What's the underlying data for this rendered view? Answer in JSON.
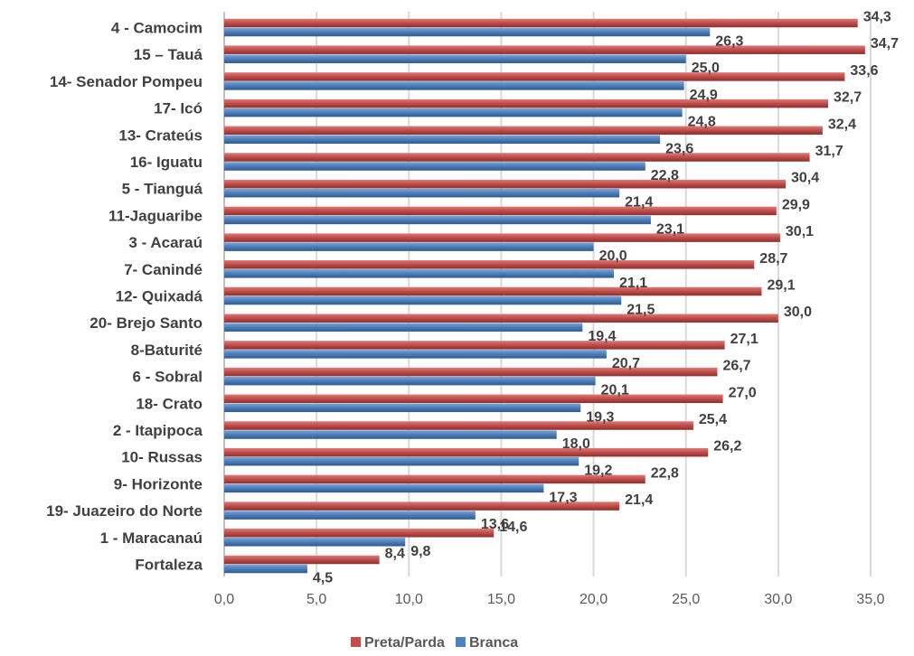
{
  "chart_data": {
    "type": "bar",
    "orientation": "horizontal",
    "categories": [
      "4 - Camocim",
      "15 – Tauá",
      "14- Senador Pompeu",
      "17- Icó",
      "13- Crateús",
      "16- Iguatu",
      "5 - Tianguá",
      "11-Jaguaribe",
      "3 - Acaraú",
      "7- Canindé",
      "12- Quixadá",
      "20- Brejo Santo",
      "8-Baturité",
      "6 - Sobral",
      "18- Crato",
      "2 - Itapipoca",
      "10- Russas",
      "9- Horizonte",
      "19- Juazeiro do Norte",
      "1 - Maracanaú",
      "Fortaleza"
    ],
    "series": [
      {
        "name": "Preta/Parda",
        "color": "#c0504d",
        "values": [
          34.3,
          34.7,
          33.6,
          32.7,
          32.4,
          31.7,
          30.4,
          29.9,
          30.1,
          28.7,
          29.1,
          30.0,
          27.1,
          26.7,
          27.0,
          25.4,
          26.2,
          22.8,
          21.4,
          14.6,
          8.4
        ],
        "labels": [
          "34,3",
          "34,7",
          "33,6",
          "32,7",
          "32,4",
          "31,7",
          "30,4",
          "29,9",
          "30,1",
          "28,7",
          "29,1",
          "30,0",
          "27,1",
          "26,7",
          "27,0",
          "25,4",
          "26,2",
          "22,8",
          "21,4",
          "14,6",
          "8,4"
        ]
      },
      {
        "name": "Branca",
        "color": "#4f81bd",
        "values": [
          26.3,
          25.0,
          24.9,
          24.8,
          23.6,
          22.8,
          21.4,
          23.1,
          20.0,
          21.1,
          21.5,
          19.4,
          20.7,
          20.1,
          19.3,
          18.0,
          19.2,
          17.3,
          13.6,
          9.8,
          4.5
        ],
        "labels": [
          "26,3",
          "25,0",
          "24,9",
          "24,8",
          "23,6",
          "22,8",
          "21,4",
          "23,1",
          "20,0",
          "21,1",
          "21,5",
          "19,4",
          "20,7",
          "20,1",
          "19,3",
          "18,0",
          "19,2",
          "17,3",
          "13,6",
          "9,8",
          "4,5"
        ]
      }
    ],
    "x_ticks": [
      0,
      5,
      10,
      15,
      20,
      25,
      30,
      35
    ],
    "x_tick_labels": [
      "0,0",
      "5,0",
      "10,0",
      "15,0",
      "20,0",
      "25,0",
      "30,0",
      "35,0"
    ],
    "xlim": [
      0,
      35
    ],
    "grid": true,
    "legend_position": "bottom",
    "title": "",
    "xlabel": "",
    "ylabel": ""
  }
}
